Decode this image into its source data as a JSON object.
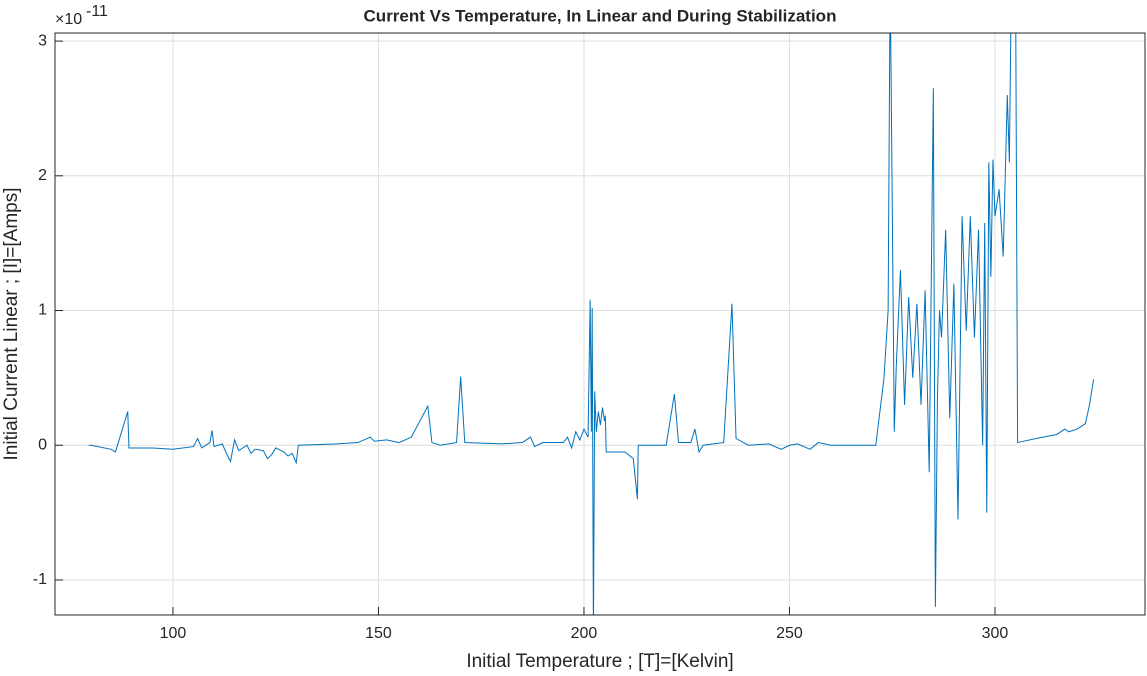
{
  "chart_data": {
    "type": "line",
    "title": "Current Vs Temperature, In Linear and During Stabilization",
    "x_label": "Initial Temperature ; [T]=[Kelvin]",
    "y_label": "Initial Current Linear ; [I]=[Amps]",
    "y_exponent_base": "×10",
    "y_exponent": "-11",
    "xlim": [
      71.3,
      336.5
    ],
    "ylim": [
      -1.26,
      3.06
    ],
    "xticks": [
      100,
      150,
      200,
      250,
      300
    ],
    "yticks": [
      -1,
      0,
      1,
      2,
      3
    ],
    "grid": true,
    "series": [
      {
        "color": "#0072bd",
        "x": [
          79.5,
          80,
          85,
          86,
          89,
          89.3,
          95,
          100,
          105,
          106,
          107,
          109,
          109.5,
          110,
          112,
          113,
          114,
          115,
          116,
          118,
          119,
          120,
          122,
          123,
          124,
          125,
          127,
          128,
          129,
          130,
          130.5,
          140,
          145,
          148,
          149,
          152,
          155,
          158,
          162,
          163,
          165,
          169,
          170,
          171,
          180,
          185,
          187,
          188,
          190,
          195,
          196,
          197,
          198,
          199,
          200,
          201,
          201.5,
          201.8,
          202,
          202.3,
          202.6,
          203,
          203.5,
          204,
          204.5,
          205,
          205.2,
          205.4,
          210,
          212,
          213,
          213.2,
          220,
          222,
          223,
          226,
          227,
          228,
          229,
          234,
          236,
          237,
          240,
          245,
          248,
          250,
          252,
          255,
          257,
          260,
          265,
          271,
          273,
          274,
          274.5,
          275.5,
          276,
          277,
          278,
          279,
          280,
          281,
          282,
          283,
          284,
          285,
          285.5,
          286,
          286.5,
          287,
          288,
          289,
          290,
          291,
          292,
          293,
          294,
          295,
          296,
          297,
          297.5,
          298,
          298.5,
          299,
          299.5,
          300,
          301,
          302,
          303,
          303.5,
          304,
          305,
          305.5,
          310,
          315,
          317,
          318,
          320,
          322,
          323,
          324
        ],
        "values": [
          0,
          0,
          -0.03,
          -0.05,
          0.25,
          -0.02,
          -0.02,
          -0.03,
          -0.01,
          0.05,
          -0.02,
          0.02,
          0.11,
          -0.01,
          0.01,
          -0.06,
          -0.12,
          0.04,
          -0.04,
          0,
          -0.06,
          -0.03,
          -0.04,
          -0.1,
          -0.07,
          -0.02,
          -0.05,
          -0.08,
          -0.06,
          -0.13,
          0,
          0.01,
          0.02,
          0.06,
          0.03,
          0.04,
          0.02,
          0.06,
          0.29,
          0.02,
          0,
          0.02,
          0.51,
          0.02,
          0.01,
          0.02,
          0.06,
          -0.01,
          0.02,
          0.02,
          0.06,
          -0.02,
          0.1,
          0.04,
          0.12,
          0.06,
          1.08,
          0.1,
          1.02,
          -1.4,
          0.4,
          0.1,
          0.25,
          0.15,
          0.28,
          0.18,
          0.22,
          -0.05,
          -0.05,
          -0.1,
          -0.4,
          0,
          0,
          0.38,
          0.02,
          0.02,
          0.12,
          -0.05,
          0,
          0.02,
          1.05,
          0.05,
          0,
          0.01,
          -0.03,
          0,
          0.01,
          -0.03,
          0.02,
          0,
          0,
          0,
          0.5,
          1.0,
          3.5,
          0.1,
          0.6,
          1.3,
          0.3,
          1.1,
          0.5,
          1.05,
          0.3,
          1.15,
          -0.2,
          2.65,
          -1.2,
          0.35,
          1.0,
          0.8,
          1.6,
          0.2,
          1.2,
          -0.55,
          1.7,
          0.85,
          1.7,
          0.8,
          1.6,
          0,
          1.65,
          -0.5,
          2.1,
          1.25,
          2.12,
          1.7,
          1.9,
          1.4,
          2.6,
          2.1,
          3.5,
          3.5,
          0.02,
          0.05,
          0.08,
          0.12,
          0.1,
          0.12,
          0.16,
          0.3,
          0.49
        ]
      }
    ]
  }
}
